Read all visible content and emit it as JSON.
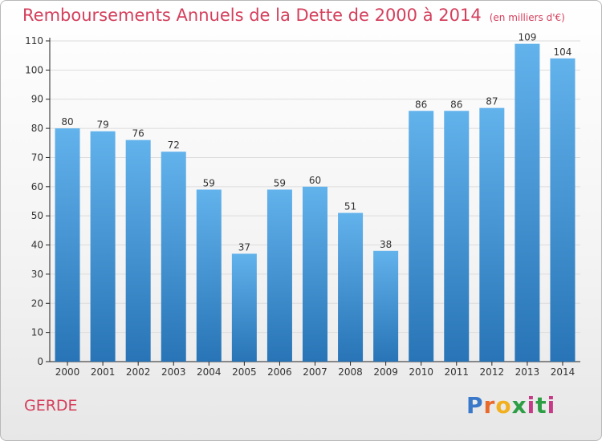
{
  "header": {
    "title": "Remboursements Annuels de la Dette de 2000 à 2014",
    "subtitle": "(en milliers d'€)"
  },
  "footer": {
    "commune": "GERDE",
    "logo_text": "Proxiti"
  },
  "colors": {
    "title": "#d43f5c",
    "bar_top": "#62b2ec",
    "bar_bottom": "#2874b6",
    "axis": "#222222",
    "grid": "#dcdcdc"
  },
  "chart_data": {
    "type": "bar",
    "title": "Remboursements Annuels de la Dette de 2000 à 2014",
    "subtitle": "(en milliers d'€)",
    "categories": [
      "2000",
      "2001",
      "2002",
      "2003",
      "2004",
      "2005",
      "2006",
      "2007",
      "2008",
      "2009",
      "2010",
      "2011",
      "2012",
      "2013",
      "2014"
    ],
    "values": [
      80,
      79,
      76,
      72,
      59,
      37,
      59,
      60,
      51,
      38,
      86,
      86,
      87,
      109,
      104
    ],
    "ylim": [
      0,
      110
    ],
    "yticks": [
      0,
      10,
      20,
      30,
      40,
      50,
      60,
      70,
      80,
      90,
      100,
      110
    ],
    "grid": true,
    "data_labels": true
  }
}
